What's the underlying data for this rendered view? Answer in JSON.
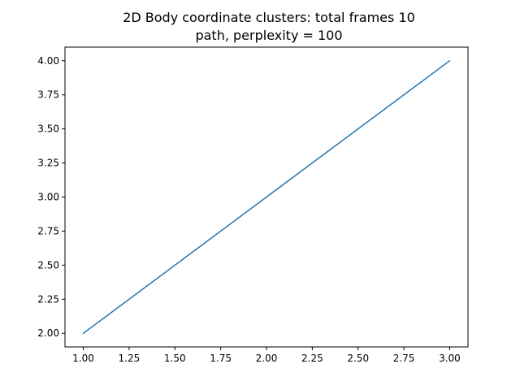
{
  "chart_data": {
    "type": "line",
    "title_lines": [
      "2D Body coordinate clusters: total frames 10",
      "path, perplexity = 100"
    ],
    "xlabel": "",
    "ylabel": "",
    "xlim": [
      0.9,
      3.1
    ],
    "ylim": [
      1.9,
      4.1
    ],
    "x_ticks": [
      1.0,
      1.25,
      1.5,
      1.75,
      2.0,
      2.25,
      2.5,
      2.75,
      3.0
    ],
    "x_tick_labels": [
      "1.00",
      "1.25",
      "1.50",
      "1.75",
      "2.00",
      "2.25",
      "2.50",
      "2.75",
      "3.00"
    ],
    "y_ticks": [
      2.0,
      2.25,
      2.5,
      2.75,
      3.0,
      3.25,
      3.5,
      3.75,
      4.0
    ],
    "y_tick_labels": [
      "2.00",
      "2.25",
      "2.50",
      "2.75",
      "3.00",
      "3.25",
      "3.50",
      "3.75",
      "4.00"
    ],
    "grid": false,
    "series": [
      {
        "x": [
          1,
          2,
          3
        ],
        "y": [
          2,
          3,
          4
        ],
        "color": "#1f77b4"
      }
    ]
  }
}
